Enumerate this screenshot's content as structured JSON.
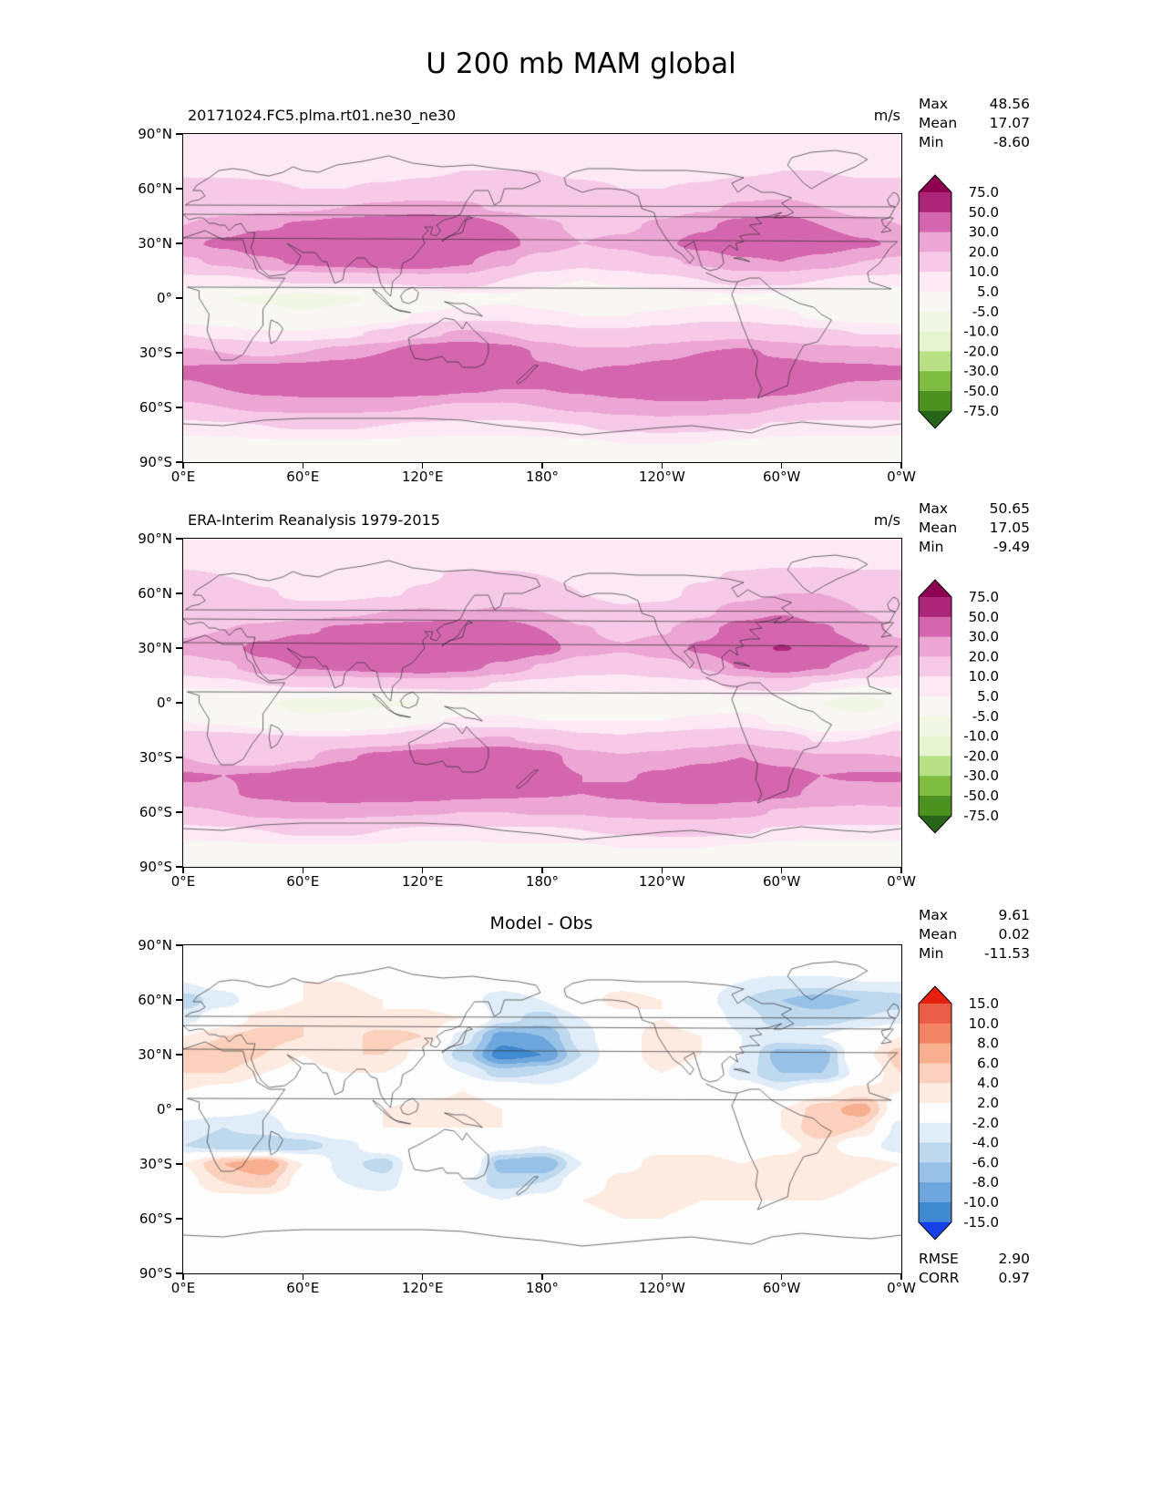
{
  "page_title": "U 200 mb MAM global",
  "labels": {
    "max": "Max",
    "mean": "Mean",
    "min": "Min",
    "rmse": "RMSE",
    "corr": "CORR",
    "units": "m/s"
  },
  "axes": {
    "lat_ticks": [
      "90°N",
      "60°N",
      "30°N",
      "0°",
      "30°S",
      "60°S",
      "90°S"
    ],
    "lon_ticks": [
      "0°E",
      "60°E",
      "120°E",
      "180°",
      "120°W",
      "60°W",
      "0°W"
    ]
  },
  "panels": [
    {
      "subtitle": "20171024.FC5.plma.rt01.ne30_ne30",
      "units": "m/s",
      "stats": {
        "max": "48.56",
        "mean": "17.07",
        "min": "-8.60"
      },
      "colorbar": "absolute",
      "field": "model"
    },
    {
      "subtitle": "ERA-Interim Reanalysis 1979-2015",
      "units": "m/s",
      "stats": {
        "max": "50.65",
        "mean": "17.05",
        "min": "-9.49"
      },
      "colorbar": "absolute",
      "field": "obs"
    },
    {
      "subtitle": "Model - Obs",
      "stats": {
        "max": "9.61",
        "mean": "0.02",
        "min": "-11.53"
      },
      "extra": {
        "rmse": "2.90",
        "corr": "0.97"
      },
      "colorbar": "diff",
      "field": "diff"
    }
  ],
  "colorbars": {
    "absolute": {
      "levels": [
        -75,
        -50,
        -30,
        -20,
        -10,
        -5,
        5,
        10,
        20,
        30,
        50,
        75
      ],
      "labels": [
        "75.0",
        "50.0",
        "30.0",
        "20.0",
        "10.0",
        "5.0",
        "-5.0",
        "-10.0",
        "-20.0",
        "-30.0",
        "-50.0",
        "-75.0"
      ],
      "colors": [
        "#276419",
        "#4d9221",
        "#7fbc41",
        "#b8e186",
        "#e6f5d0",
        "#f2f6e5",
        "#f8f7f4",
        "#fce9f4",
        "#f6cae6",
        "#eca6d4",
        "#d466ae",
        "#ab2579",
        "#8e0152"
      ]
    },
    "diff": {
      "levels": [
        -15,
        -10,
        -8,
        -6,
        -4,
        -2,
        2,
        4,
        6,
        8,
        10,
        15
      ],
      "labels": [
        "15.0",
        "10.0",
        "8.0",
        "6.0",
        "4.0",
        "2.0",
        "-2.0",
        "-4.0",
        "-6.0",
        "-8.0",
        "-10.0",
        "-15.0"
      ],
      "colors": [
        "#1741e8",
        "#4189d0",
        "#6da6dc",
        "#97c1e6",
        "#bed8ee",
        "#e0ecf7",
        "#fdfdfd",
        "#fdeae1",
        "#fbd0bc",
        "#f8af90",
        "#f28465",
        "#ea5e47",
        "#e8200f"
      ]
    }
  },
  "chart_data": {
    "type": "heatmap",
    "title": "U 200 mb MAM global",
    "variable": "U",
    "level": "200 mb",
    "season": "MAM",
    "region": "global",
    "units": "m/s",
    "lon_range": [
      0,
      360
    ],
    "lat_range": [
      -90,
      90
    ],
    "contour_levels_absolute": [
      -75,
      -50,
      -30,
      -20,
      -10,
      -5,
      5,
      10,
      20,
      30,
      50,
      75
    ],
    "contour_levels_diff": [
      -15,
      -10,
      -8,
      -6,
      -4,
      -2,
      2,
      4,
      6,
      8,
      10,
      15
    ],
    "lon": [
      0,
      20,
      40,
      60,
      80,
      100,
      120,
      140,
      160,
      180,
      200,
      220,
      240,
      260,
      280,
      300,
      320,
      340,
      360
    ],
    "lat": [
      90,
      80,
      70,
      60,
      50,
      40,
      30,
      20,
      10,
      0,
      -10,
      -20,
      -30,
      -40,
      -50,
      -60,
      -70,
      -80,
      -90
    ],
    "series": [
      {
        "name": "20171024.FC5.plma.rt01.ne30_ne30",
        "stats": {
          "max": 48.56,
          "mean": 17.07,
          "min": -8.6
        },
        "grid_key": "model_grid"
      },
      {
        "name": "ERA-Interim Reanalysis 1979-2015",
        "stats": {
          "max": 50.65,
          "mean": 17.05,
          "min": -9.49
        },
        "grid_key": "obs_derived"
      },
      {
        "name": "Model - Obs",
        "stats": {
          "max": 9.61,
          "mean": 0.02,
          "min": -11.53,
          "rmse": 2.9,
          "corr": 0.97
        },
        "grid_key": "diff_grid"
      }
    ],
    "model_grid": [
      [
        6,
        6,
        6,
        6,
        6,
        6,
        6,
        6,
        6,
        6,
        6,
        6,
        6,
        6,
        6,
        6,
        6,
        6,
        6
      ],
      [
        7,
        7,
        7,
        6,
        6,
        6,
        6,
        7,
        7,
        8,
        8,
        7,
        7,
        6,
        6,
        6,
        7,
        7,
        7
      ],
      [
        9,
        9,
        9,
        8,
        8,
        8,
        9,
        10,
        10,
        10,
        9,
        9,
        8,
        8,
        9,
        10,
        10,
        9,
        9
      ],
      [
        12,
        12,
        11,
        10,
        10,
        11,
        12,
        13,
        13,
        12,
        11,
        10,
        10,
        11,
        13,
        14,
        13,
        12,
        12
      ],
      [
        15,
        16,
        17,
        18,
        20,
        22,
        24,
        22,
        18,
        15,
        13,
        13,
        15,
        18,
        22,
        24,
        20,
        16,
        15
      ],
      [
        20,
        24,
        28,
        32,
        36,
        40,
        42,
        38,
        30,
        22,
        18,
        18,
        22,
        28,
        34,
        38,
        30,
        24,
        20
      ],
      [
        28,
        32,
        38,
        44,
        46,
        47,
        47,
        44,
        34,
        25,
        20,
        22,
        28,
        34,
        40,
        44,
        38,
        32,
        28
      ],
      [
        18,
        22,
        28,
        32,
        35,
        38,
        38,
        32,
        22,
        15,
        12,
        14,
        18,
        22,
        28,
        30,
        25,
        20,
        18
      ],
      [
        8,
        8,
        10,
        12,
        12,
        12,
        14,
        15,
        10,
        6,
        5,
        6,
        8,
        10,
        12,
        12,
        10,
        8,
        8
      ],
      [
        -3,
        -5,
        -6,
        -8,
        -6,
        -4,
        -2,
        2,
        4,
        3,
        2,
        2,
        2,
        3,
        4,
        3,
        0,
        -2,
        -3
      ],
      [
        2,
        0,
        -2,
        -4,
        -2,
        2,
        6,
        8,
        8,
        6,
        5,
        5,
        6,
        8,
        8,
        6,
        4,
        3,
        2
      ],
      [
        10,
        8,
        6,
        6,
        8,
        12,
        18,
        22,
        20,
        15,
        12,
        12,
        14,
        16,
        18,
        15,
        12,
        10,
        10
      ],
      [
        22,
        20,
        18,
        20,
        25,
        30,
        40,
        46,
        38,
        28,
        22,
        22,
        26,
        30,
        32,
        28,
        25,
        24,
        22
      ],
      [
        32,
        34,
        36,
        38,
        40,
        42,
        46,
        44,
        38,
        32,
        30,
        32,
        36,
        40,
        42,
        38,
        34,
        33,
        32
      ],
      [
        28,
        30,
        33,
        35,
        36,
        36,
        35,
        32,
        30,
        30,
        32,
        35,
        38,
        40,
        38,
        34,
        30,
        28,
        28
      ],
      [
        18,
        20,
        22,
        23,
        23,
        22,
        20,
        18,
        18,
        20,
        22,
        25,
        27,
        26,
        24,
        20,
        18,
        17,
        18
      ],
      [
        8,
        9,
        10,
        11,
        11,
        10,
        9,
        8,
        8,
        9,
        10,
        12,
        13,
        12,
        11,
        9,
        8,
        8,
        8
      ],
      [
        3,
        3,
        4,
        4,
        4,
        4,
        3,
        3,
        3,
        3,
        4,
        5,
        5,
        5,
        4,
        3,
        3,
        3,
        3
      ],
      [
        1,
        1,
        1,
        1,
        1,
        1,
        1,
        1,
        1,
        1,
        1,
        1,
        1,
        1,
        1,
        1,
        1,
        1,
        1
      ]
    ],
    "diff_grid": [
      [
        0,
        0,
        0,
        0,
        0,
        0,
        0,
        0,
        0,
        0,
        0,
        0,
        0,
        0,
        0,
        0,
        0,
        0,
        0
      ],
      [
        0,
        1,
        1,
        0,
        0,
        -1,
        -1,
        0,
        1,
        1,
        0,
        0,
        -1,
        -1,
        0,
        1,
        1,
        0,
        0
      ],
      [
        -2,
        -1,
        1,
        2,
        2,
        1,
        0,
        -1,
        -1,
        0,
        1,
        1,
        0,
        -1,
        -2,
        -3,
        -3,
        -2,
        -2
      ],
      [
        -5,
        -3,
        0,
        2,
        3,
        2,
        1,
        -1,
        -3,
        -2,
        1,
        3,
        2,
        -1,
        -4,
        -6,
        -7,
        -6,
        -5
      ],
      [
        -3,
        0,
        3,
        4,
        3,
        2,
        3,
        2,
        -3,
        -5,
        -2,
        1,
        2,
        0,
        -3,
        -5,
        -5,
        -4,
        -3
      ],
      [
        2,
        4,
        5,
        4,
        3,
        5,
        4,
        -3,
        -9,
        -8,
        -3,
        1,
        3,
        2,
        -2,
        -3,
        -2,
        0,
        2
      ],
      [
        5,
        6,
        4,
        2,
        4,
        4,
        1,
        -5,
        -11,
        -10,
        -4,
        1,
        3,
        2,
        -2,
        -7,
        -7,
        1,
        5
      ],
      [
        4,
        4,
        2,
        1,
        2,
        2,
        0,
        -2,
        -5,
        -4,
        -2,
        1,
        2,
        1,
        -3,
        -6,
        -6,
        -1,
        4
      ],
      [
        2,
        1,
        0,
        1,
        1,
        0,
        1,
        2,
        1,
        -1,
        -1,
        0,
        1,
        2,
        0,
        -2,
        1,
        3,
        2
      ],
      [
        0,
        -1,
        -2,
        0,
        1,
        2,
        3,
        3,
        2,
        1,
        0,
        -1,
        0,
        1,
        2,
        2,
        5,
        7,
        0
      ],
      [
        -3,
        -4,
        -3,
        -1,
        1,
        2,
        2,
        2,
        2,
        1,
        0,
        0,
        1,
        2,
        1,
        2,
        6,
        4,
        -3
      ],
      [
        -4,
        -5,
        -6,
        -5,
        -3,
        0,
        2,
        2,
        -1,
        -2,
        0,
        1,
        1,
        1,
        0,
        1,
        3,
        0,
        -4
      ],
      [
        2,
        6,
        8,
        2,
        -3,
        -5,
        1,
        2,
        -7,
        -8,
        -2,
        1,
        3,
        3,
        2,
        3,
        4,
        3,
        2
      ],
      [
        1,
        4,
        5,
        1,
        -2,
        -3,
        0,
        -2,
        -5,
        -4,
        0,
        3,
        4,
        3,
        2,
        3,
        4,
        2,
        1
      ],
      [
        0,
        1,
        1,
        0,
        -1,
        -1,
        -1,
        -1,
        -2,
        -1,
        2,
        3,
        3,
        2,
        2,
        2,
        2,
        1,
        0
      ],
      [
        0,
        0,
        -1,
        -1,
        0,
        0,
        -1,
        -2,
        -2,
        -1,
        1,
        2,
        2,
        1,
        1,
        1,
        0,
        0,
        0
      ],
      [
        0,
        0,
        0,
        -1,
        -1,
        0,
        0,
        -1,
        -1,
        0,
        0,
        1,
        1,
        0,
        0,
        0,
        0,
        0,
        0
      ],
      [
        0,
        0,
        0,
        0,
        0,
        0,
        0,
        0,
        -1,
        -1,
        0,
        0,
        0,
        0,
        0,
        0,
        0,
        0,
        0
      ],
      [
        0,
        0,
        0,
        0,
        0,
        0,
        0,
        0,
        0,
        0,
        0,
        0,
        0,
        0,
        0,
        0,
        0,
        0,
        0
      ]
    ],
    "note": "Grid values are approximate m/s readings from the contour shading; obs grid = model_grid - diff_grid."
  }
}
